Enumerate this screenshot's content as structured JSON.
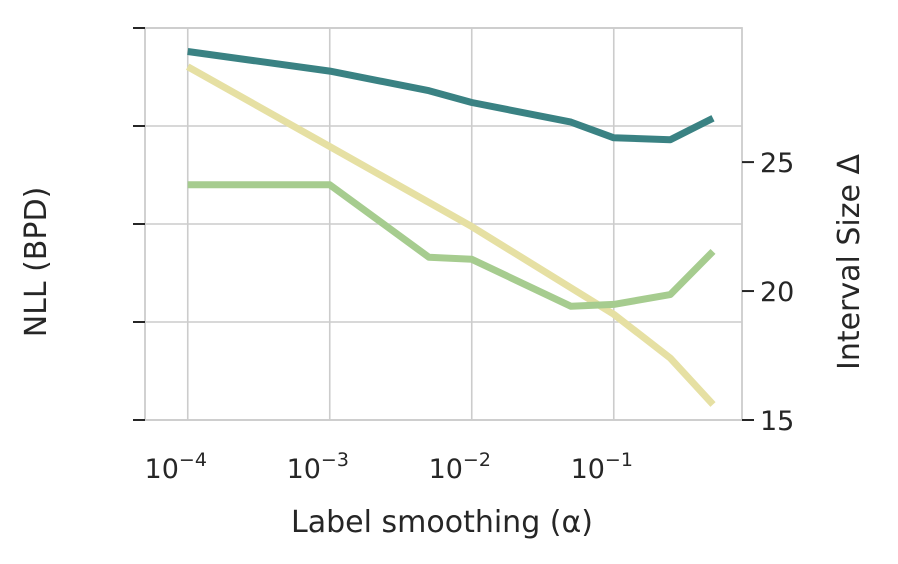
{
  "chart_data": {
    "type": "line",
    "xlabel": "Label smoothing (α)",
    "ylabel_left": "NLL (BPD)",
    "ylabel_right": "Interval Size Δ",
    "x_scale": "log",
    "xlim": [
      5e-05,
      0.8
    ],
    "x_ticks": [
      {
        "value": 0.0001,
        "base": "10",
        "exp": "−4"
      },
      {
        "value": 0.001,
        "base": "10",
        "exp": "−3"
      },
      {
        "value": 0.01,
        "base": "10",
        "exp": "−2"
      },
      {
        "value": 0.1,
        "base": "10",
        "exp": "−1"
      }
    ],
    "left_axis": {
      "ticks_unlabeled": 5,
      "ylim_fraction": [
        0,
        1
      ]
    },
    "right_axis": {
      "ylim": [
        15,
        30.2
      ],
      "ticks": [
        15,
        20,
        25
      ]
    },
    "grid": true,
    "series": [
      {
        "axis": "left",
        "color": "#3a8283",
        "x": [
          0.0001,
          0.001,
          0.005,
          0.01,
          0.05,
          0.1,
          0.25,
          0.5
        ],
        "values": [
          0.94,
          0.89,
          0.84,
          0.81,
          0.76,
          0.72,
          0.715,
          0.77
        ]
      },
      {
        "axis": "left",
        "color": "#a6cc8f",
        "x": [
          0.0001,
          0.001,
          0.005,
          0.01,
          0.05,
          0.1,
          0.25,
          0.5
        ],
        "values": [
          0.6,
          0.6,
          0.415,
          0.41,
          0.29,
          0.295,
          0.32,
          0.43
        ]
      },
      {
        "axis": "right",
        "color": "#e6e0a3",
        "x": [
          0.0001,
          0.001,
          0.01,
          0.1,
          0.25,
          0.5
        ],
        "values": [
          28.7,
          25.6,
          22.5,
          19.1,
          17.4,
          15.6
        ]
      }
    ]
  }
}
